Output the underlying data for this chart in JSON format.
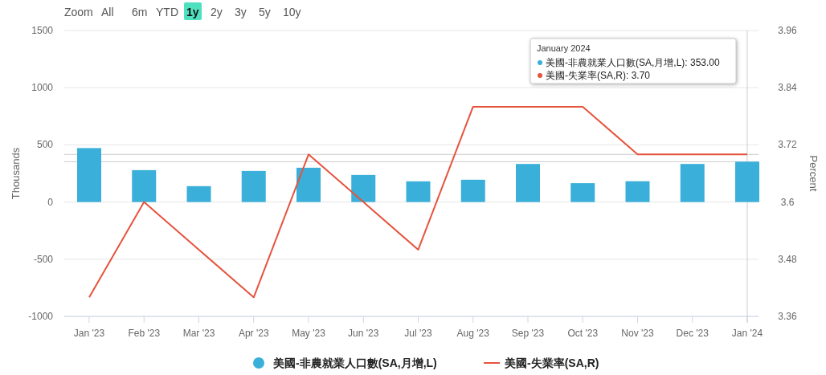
{
  "chart_data": {
    "type": "bar",
    "xlabel": null,
    "ylabel": "Thousands",
    "y2label": "Percent",
    "categories": [
      "Jan '23",
      "Feb '23",
      "Mar '23",
      "Apr '23",
      "May '23",
      "Jun '23",
      "Jul '23",
      "Aug '23",
      "Sep '23",
      "Oct '23",
      "Nov '23",
      "Dec '23",
      "Jan '24"
    ],
    "series": [
      {
        "name": "美國-非農就業人口數(SA,月增,L)",
        "color": "#3aafd9",
        "values": [
          472,
          279,
          139,
          272,
          300,
          237,
          181,
          195,
          333,
          165,
          182,
          333,
          353
        ]
      },
      {
        "name": "美國-失業率(SA,R)",
        "type": "line",
        "axis": "y2",
        "color": "#e5533d",
        "values": [
          3.4,
          3.6,
          3.5,
          3.4,
          3.7,
          3.6,
          3.5,
          3.8,
          3.8,
          3.8,
          3.7,
          3.7,
          3.7
        ]
      }
    ],
    "ylim": [
      -1000,
      1500
    ],
    "yticks": [
      -1000,
      -500,
      0,
      500,
      1000,
      1500
    ],
    "y2lim": [
      3.36,
      3.96
    ],
    "y2ticks": [
      3.36,
      3.48,
      3.6,
      3.72,
      3.84,
      3.96
    ],
    "grid": "y",
    "legend": "bottom",
    "marker": "none",
    "ref_lines": [
      {
        "axis": "x",
        "value": "Jan '24",
        "color": "#cccccc"
      },
      {
        "axis": "y",
        "value": 353,
        "color": "#cccccc"
      },
      {
        "axis": "y2",
        "value": 3.7,
        "color": "#cccccc"
      }
    ],
    "annotations": [
      "Zoom",
      "All",
      "6m",
      "YTD",
      "1y",
      "2y",
      "3y",
      "5y",
      "10y",
      "January 2024",
      "美國-非農就業人口數(SA,月增,L): 353.00",
      "美國-失業率(SA,R): 3.70"
    ]
  }
}
